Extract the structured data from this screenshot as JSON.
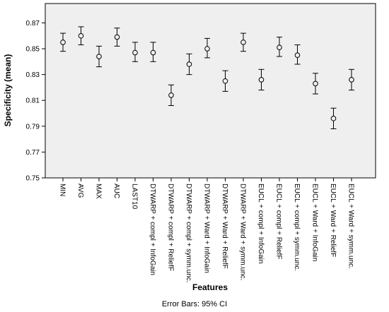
{
  "chart_data": {
    "type": "errorbar",
    "xlabel": "Features",
    "ylabel": "Specificity (mean)",
    "footnote": "Error Bars: 95% CI",
    "ylim": [
      0.75,
      0.885
    ],
    "yticks": [
      0.75,
      0.77,
      0.79,
      0.81,
      0.83,
      0.85,
      0.87
    ],
    "ytick_labels": [
      "0.75",
      "0.77",
      "0.79",
      "0.81",
      "0.83",
      "0.85",
      "0.87"
    ],
    "grid": false,
    "categories": [
      "MIN",
      "AVG",
      "MAX",
      "AUC",
      "LAST10",
      "DTWARP + compl + InfoGain",
      "DTWARP + compl + ReliefF",
      "DTWARP + compl + symm.unc.",
      "DTWARP + Ward + InfoGain",
      "DTWARP + Ward + ReliefF",
      "DTWARP + Ward + symm.unc.",
      "EUCL + compl + InfoGain",
      "EUCL + compl + ReliefF",
      "EUCL + compl + symm.unc.",
      "EUCL + Ward + InfoGain",
      "EUCL + Ward + ReliefF",
      "EUCL + Ward + symm.unc."
    ],
    "mean": [
      0.855,
      0.86,
      0.844,
      0.859,
      0.847,
      0.847,
      0.814,
      0.838,
      0.85,
      0.825,
      0.855,
      0.826,
      0.851,
      0.845,
      0.823,
      0.796,
      0.826
    ],
    "lower": [
      0.848,
      0.853,
      0.836,
      0.852,
      0.84,
      0.84,
      0.806,
      0.83,
      0.843,
      0.817,
      0.848,
      0.818,
      0.844,
      0.838,
      0.815,
      0.788,
      0.818
    ],
    "upper": [
      0.862,
      0.867,
      0.852,
      0.866,
      0.855,
      0.855,
      0.822,
      0.846,
      0.858,
      0.833,
      0.862,
      0.834,
      0.859,
      0.853,
      0.831,
      0.804,
      0.834
    ],
    "colors": {
      "plot_background": "#efefef",
      "marker": "#000000",
      "axis": "#000000"
    }
  }
}
